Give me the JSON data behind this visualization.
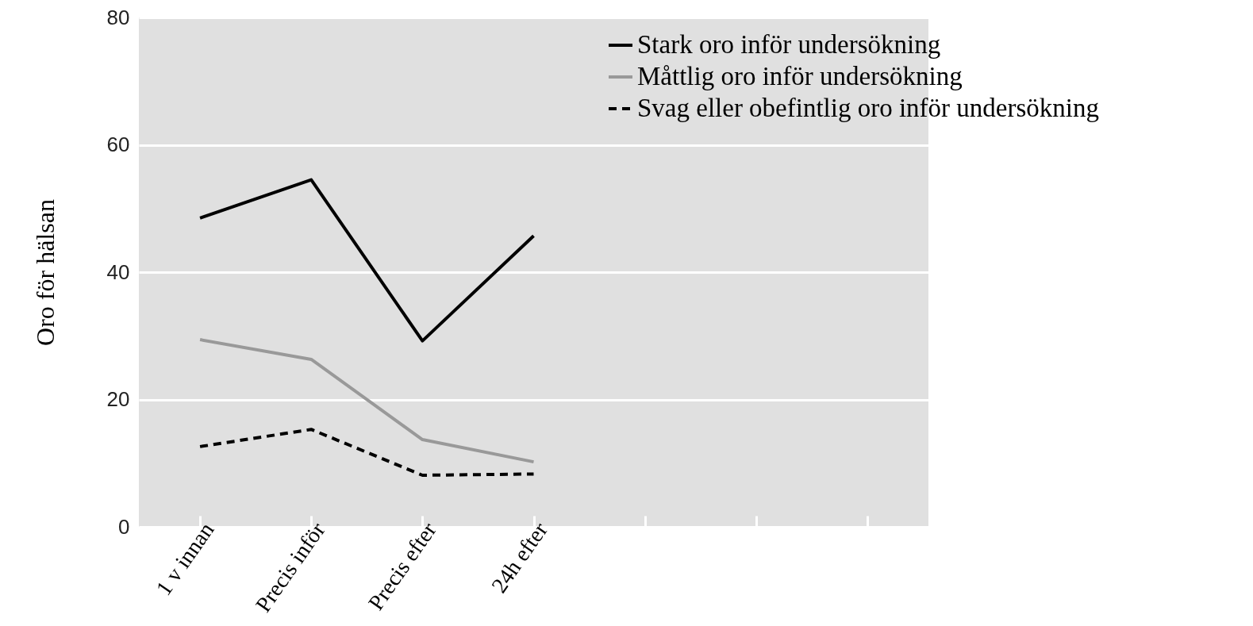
{
  "chart_data": {
    "type": "line",
    "ylabel": "Oro för hälsan",
    "categories": [
      "1 v innan",
      "Precis inför",
      "Precis efter",
      "24h efter",
      null,
      null,
      null
    ],
    "series": [
      {
        "name": "Stark oro inför undersökning",
        "color": "#000000",
        "line_style": "solid",
        "values": [
          48.5,
          54.5,
          29.2,
          45.7,
          null,
          null,
          null
        ]
      },
      {
        "name": "Måttlig oro inför undersökning",
        "color": "#999999",
        "line_style": "solid",
        "values": [
          29.4,
          26.3,
          13.7,
          10.2,
          null,
          null,
          null
        ]
      },
      {
        "name": "Svag eller obefintlig oro inför undersökning",
        "color": "#000000",
        "line_style": "dashed",
        "values": [
          12.6,
          15.3,
          8.1,
          8.3,
          null,
          null,
          null
        ]
      }
    ],
    "ylim": [
      0,
      80
    ],
    "yticks": [
      0,
      20,
      40,
      60,
      80
    ],
    "grid": "y",
    "legend": "top right",
    "marker": "none"
  }
}
